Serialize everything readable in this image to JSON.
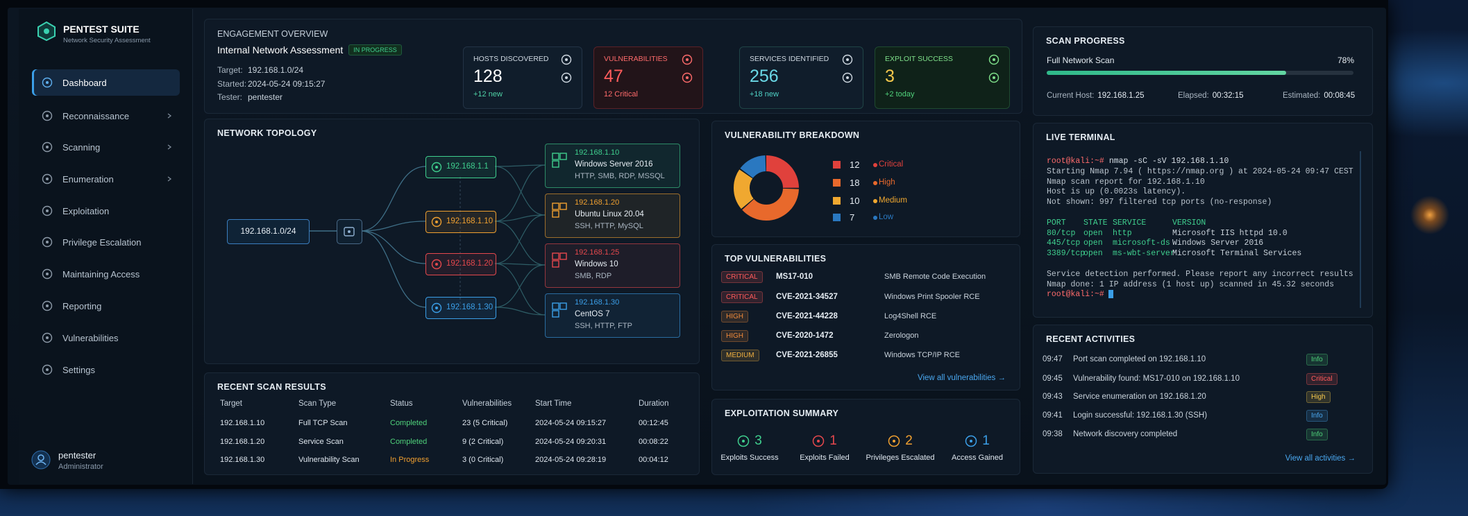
{
  "brand": {
    "name": "PENTEST SUITE",
    "tagline": "Network Security Assessment"
  },
  "nav": [
    "Dashboard",
    "Reconnaissance",
    "Scanning",
    "Enumeration",
    "Exploitation",
    "Privilege Escalation",
    "Maintaining Access",
    "Reporting",
    "Vulnerabilities",
    "Settings"
  ],
  "user": {
    "name": "pentester",
    "role": "Administrator"
  },
  "overview": {
    "title": "ENGAGEMENT OVERVIEW",
    "name": "Internal Network Assessment",
    "status": "IN PROGRESS",
    "fields": [
      {
        "label": "Target:",
        "value": "192.168.1.0/24"
      },
      {
        "label": "Started:",
        "value": "2024-05-24 09:15:27"
      },
      {
        "label": "Tester:",
        "value": "pentester"
      }
    ]
  },
  "stats": [
    {
      "label": "HOSTS DISCOVERED",
      "value": 128,
      "delta": "+12 new",
      "color": "#ffffff",
      "delta_color": "#4fd1a5"
    },
    {
      "label": "VULNERABILITIES",
      "value": 47,
      "delta": "12 Critical",
      "color": "#ff5c5c",
      "delta_color": "#ff6b6b"
    },
    {
      "label": "SERVICES IDENTIFIED",
      "value": 256,
      "delta": "+18 new",
      "color": "#6ad8e6",
      "delta_color": "#4fd1c5"
    },
    {
      "label": "EXPLOIT SUCCESS",
      "value": 3,
      "delta": "+2 today",
      "color": "#f5c84c",
      "delta_color": "#4fd17a"
    }
  ],
  "scan_progress": {
    "title": "SCAN PROGRESS",
    "scan": "Full Network Scan",
    "progress": {
      "value": 78,
      "label": "78%"
    },
    "details": [
      {
        "label": "Current Host:",
        "value": "192.168.1.25"
      },
      {
        "label": "Elapsed:",
        "value": "00:32:15"
      },
      {
        "label": "Estimated:",
        "value": "00:08:45"
      }
    ]
  },
  "topology": {
    "title": "NETWORK TOPOLOGY",
    "network": "192.168.1.0/24",
    "gateways": [
      {
        "ip": "192.168.1.1",
        "color": "#3fcf8e"
      },
      {
        "ip": "192.168.1.10",
        "color": "#f0a030"
      },
      {
        "ip": "192.168.1.20",
        "color": "#e5484d"
      },
      {
        "ip": "192.168.1.30",
        "color": "#3b9fe8"
      }
    ],
    "hosts": [
      {
        "ip": "192.168.1.10",
        "os": "Windows Server 2016",
        "services": "HTTP, SMB, RDP, MSSQL",
        "color": "#3fcf8e"
      },
      {
        "ip": "192.168.1.20",
        "os": "Ubuntu Linux 20.04",
        "services": "SSH, HTTP, MySQL",
        "color": "#f0a030"
      },
      {
        "ip": "192.168.1.25",
        "os": "Windows 10",
        "services": "SMB, RDP",
        "color": "#e5484d"
      },
      {
        "ip": "192.168.1.30",
        "os": "CentOS 7",
        "services": "SSH, HTTP, FTP",
        "color": "#3b9fe8"
      }
    ]
  },
  "vuln_breakdown": {
    "title": "VULNERABILITY BREAKDOWN",
    "items": [
      {
        "count": 12,
        "label": "Critical",
        "color": "#e0413c"
      },
      {
        "count": 18,
        "label": "High",
        "color": "#e8692c"
      },
      {
        "count": 10,
        "label": "Medium",
        "color": "#f0a830"
      },
      {
        "count": 7,
        "label": "Low",
        "color": "#2a78c0"
      }
    ]
  },
  "top_vulns": {
    "title": "TOP VULNERABILITIES",
    "rows": [
      {
        "severity": "CRITICAL",
        "id": "MS17-010",
        "name": "SMB Remote Code Execution",
        "color": "#ff5a5a"
      },
      {
        "severity": "CRITICAL",
        "id": "CVE-2021-34527",
        "name": "Windows Print Spooler RCE",
        "color": "#ff5a5a"
      },
      {
        "severity": "HIGH",
        "id": "CVE-2021-44228",
        "name": "Log4Shell RCE",
        "color": "#f08a3a"
      },
      {
        "severity": "HIGH",
        "id": "CVE-2020-1472",
        "name": "Zerologon",
        "color": "#f08a3a"
      },
      {
        "severity": "MEDIUM",
        "id": "CVE-2021-26855",
        "name": "Windows TCP/IP RCE",
        "color": "#f0b040"
      }
    ],
    "link": "View all vulnerabilities →"
  },
  "terminal": {
    "title": "LIVE TERMINAL",
    "command": {
      "prompt": "root@kali:~#",
      "text": "nmap -sC -sV 192.168.1.10"
    },
    "output": [
      "Starting Nmap 7.94 ( https://nmap.org ) at 2024-05-24 09:47 CEST",
      "Nmap scan report for 192.168.1.10",
      "Host is up (0.0023s latency).",
      "Not shown: 997 filtered tcp ports (no-response)"
    ],
    "ports": {
      "columns": [
        "PORT",
        "STATE",
        "SERVICE",
        "VERSION"
      ],
      "rows": [
        [
          "80/tcp",
          "open",
          "http",
          "Microsoft IIS httpd 10.0"
        ],
        [
          "445/tcp",
          "open",
          "microsoft-ds",
          "Windows Server 2016"
        ],
        [
          "3389/tcp",
          "open",
          "ms-wbt-server",
          "Microsoft Terminal Services"
        ]
      ]
    },
    "summary": [
      "Service detection performed. Please report any incorrect results",
      "Nmap done: 1 IP address (1 host up) scanned in 45.32 seconds"
    ],
    "prompt": "root@kali:~#"
  },
  "recent_scans": {
    "title": "RECENT SCAN RESULTS",
    "columns": [
      "Target",
      "Scan Type",
      "Status",
      "Vulnerabilities",
      "Start Time",
      "Duration"
    ],
    "rows": [
      {
        "target": "192.168.1.10",
        "type": "Full TCP Scan",
        "status": "Completed",
        "status_color": "#4fd17a",
        "vulns": "23 (5 Critical)",
        "start": "2024-05-24 09:15:27",
        "duration": "00:12:45"
      },
      {
        "target": "192.168.1.20",
        "type": "Service Scan",
        "status": "Completed",
        "status_color": "#4fd17a",
        "vulns": "9 (2 Critical)",
        "start": "2024-05-24 09:20:31",
        "duration": "00:08:22"
      },
      {
        "target": "192.168.1.30",
        "type": "Vulnerability Scan",
        "status": "In Progress",
        "status_color": "#f0a030",
        "vulns": "3 (0 Critical)",
        "start": "2024-05-24 09:28:19",
        "duration": "00:04:12"
      }
    ]
  },
  "exploitation": {
    "title": "EXPLOITATION SUMMARY",
    "items": [
      {
        "count": 3,
        "label": "Exploits Success",
        "color": "#3fcf8e"
      },
      {
        "count": 1,
        "label": "Exploits Failed",
        "color": "#e5484d"
      },
      {
        "count": 2,
        "label": "Privileges Escalated",
        "color": "#f0a030"
      },
      {
        "count": 1,
        "label": "Access Gained",
        "color": "#3b9fe8"
      }
    ]
  },
  "recent_activities": {
    "title": "RECENT ACTIVITIES",
    "rows": [
      {
        "time": "09:47",
        "text": "Port scan completed on 192.168.1.10",
        "tag": "Info",
        "color": "#4fd17a"
      },
      {
        "time": "09:45",
        "text": "Vulnerability found: MS17-010 on 192.168.1.10",
        "tag": "Critical",
        "color": "#ff5a5a"
      },
      {
        "time": "09:43",
        "text": "Service enumeration on 192.168.1.20",
        "tag": "High",
        "color": "#f5c84c"
      },
      {
        "time": "09:41",
        "text": "Login successful: 192.168.1.30 (SSH)",
        "tag": "Info",
        "color": "#4aa8f0"
      },
      {
        "time": "09:38",
        "text": "Network discovery completed",
        "tag": "Info",
        "color": "#4fd17a"
      }
    ],
    "link": "View all activities →"
  }
}
